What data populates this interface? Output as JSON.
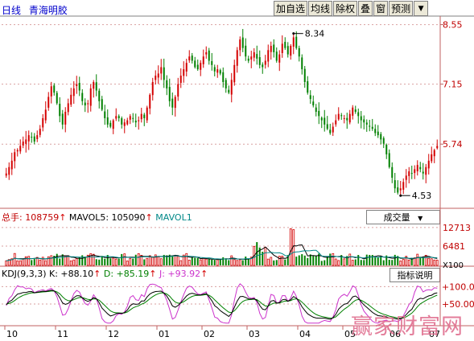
{
  "header": {
    "period": "日线",
    "stock_name": "青海明胶"
  },
  "toolbar": {
    "buttons": [
      "加自选",
      "均线",
      "除权",
      "叠",
      "窗",
      "预测"
    ],
    "arrow": "▼"
  },
  "price_panel": {
    "yticks": [
      "8.55",
      "7.15",
      "5.74"
    ],
    "ytick_values": [
      8.55,
      7.15,
      5.74
    ],
    "ylim": [
      4.25,
      8.75
    ],
    "annotations": [
      {
        "label": "8.34",
        "value": 8.34
      },
      {
        "label": "4.53",
        "value": 4.53
      }
    ]
  },
  "volume_panel": {
    "label_total": "总手: 108759",
    "label_mavol5": "MAVOL5: 105090",
    "label_mavol1": "MAVOL1",
    "dropdown": "成交量",
    "yticks": [
      "12713",
      "6481",
      "X100"
    ],
    "ytick_values": [
      12713,
      6481
    ],
    "ymax": 13500
  },
  "kdj_panel": {
    "label_params": "KDJ(9,3,3)",
    "label_k": "K: +88.10",
    "label_d": "D: +85.19",
    "label_j": "J: +93.92",
    "dropdown": "指标说明",
    "yticks": [
      "+100.0",
      "+50.00"
    ],
    "ytick_values": [
      100,
      50
    ],
    "ylim": [
      -10,
      110
    ]
  },
  "xaxis": {
    "labels": [
      "10",
      "11",
      "12",
      "01",
      "02",
      "03",
      "04",
      "05",
      "06",
      "07"
    ]
  },
  "colors": {
    "up": "#d40000",
    "down": "#008000",
    "grid": "#c06060",
    "k_line": "#000000",
    "d_line": "#008000",
    "j_line": "#cc33cc",
    "mavol5": "#000000",
    "mavol1": "#008888",
    "title_blue": "#0000cc"
  },
  "watermark": "赢家财富网",
  "chart_data": {
    "type": "candlestick",
    "title": "青海明胶 日线",
    "x_month_labels": [
      "10",
      "11",
      "12",
      "01",
      "02",
      "03",
      "04",
      "05",
      "06",
      "07"
    ],
    "close": [
      5.05,
      5.2,
      5.35,
      5.55,
      5.6,
      5.7,
      5.8,
      5.85,
      5.95,
      5.9,
      5.8,
      5.95,
      6.1,
      6.35,
      6.55,
      6.85,
      7.1,
      6.95,
      6.7,
      6.4,
      6.2,
      6.5,
      6.7,
      6.9,
      7.05,
      7.15,
      7.0,
      6.75,
      6.65,
      6.7,
      7.05,
      7.2,
      7.0,
      6.75,
      6.55,
      6.35,
      6.2,
      6.15,
      6.3,
      6.4,
      6.35,
      6.2,
      6.25,
      6.3,
      6.4,
      6.35,
      6.25,
      6.3,
      6.45,
      6.35,
      6.6,
      6.9,
      7.2,
      7.35,
      7.4,
      7.55,
      7.25,
      7.05,
      6.75,
      6.6,
      6.85,
      7.15,
      7.35,
      7.5,
      7.65,
      7.8,
      7.7,
      7.55,
      7.5,
      7.65,
      7.8,
      7.9,
      7.7,
      7.6,
      7.45,
      7.5,
      7.4,
      7.2,
      7.05,
      6.95,
      7.25,
      7.6,
      7.95,
      8.2,
      8.0,
      7.8,
      7.7,
      7.8,
      7.9,
      7.75,
      7.6,
      7.55,
      7.7,
      7.95,
      8.05,
      7.9,
      7.7,
      7.85,
      8.1,
      8.0,
      7.85,
      8.05,
      8.25,
      8.0,
      7.8,
      7.5,
      7.2,
      6.95,
      6.8,
      6.65,
      6.5,
      6.4,
      6.3,
      6.2,
      6.1,
      6.0,
      6.15,
      6.3,
      6.45,
      6.4,
      6.35,
      6.3,
      6.45,
      6.6,
      6.5,
      6.4,
      6.3,
      6.25,
      6.2,
      6.15,
      6.1,
      6.0,
      5.95,
      5.85,
      5.75,
      5.5,
      5.2,
      4.95,
      4.7,
      4.6,
      4.7,
      4.85,
      5.0,
      5.1,
      5.05,
      5.15,
      5.25,
      5.15,
      5.05,
      5.2,
      5.35,
      5.5,
      5.6,
      5.7
    ],
    "low_marked": 4.53,
    "high_marked": 8.34,
    "price_ticks": [
      8.55,
      7.15,
      5.74
    ],
    "volume_ticks": [
      12713,
      6481
    ],
    "volume_unit": "X100",
    "kdj_ticks": [
      100,
      50
    ]
  }
}
